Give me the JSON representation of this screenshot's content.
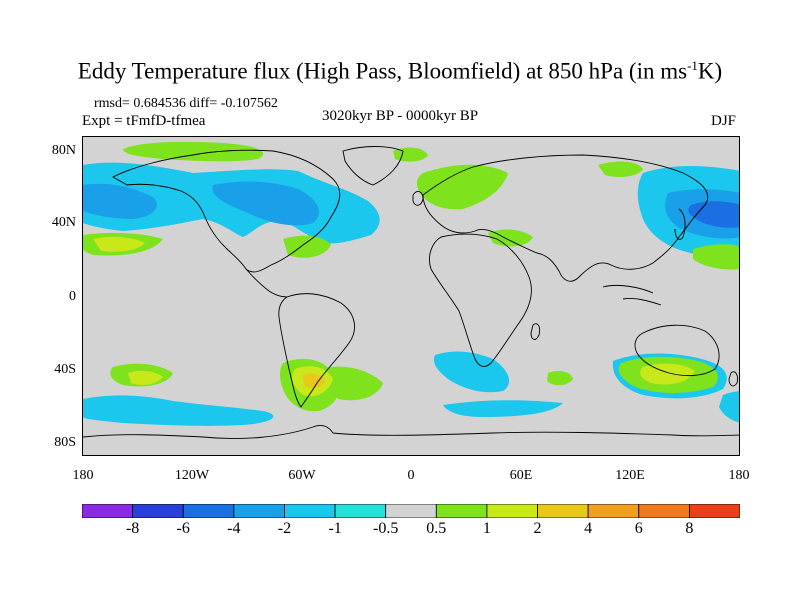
{
  "title": {
    "main": "Eddy Temperature flux (High Pass, Bloomfield) at 850 hPa (in ms",
    "sup": "-1",
    "tail": "K)"
  },
  "stats": "rmsd= 0.684536 diff= -0.107562",
  "experiment": "Expt = tFmfD-tfmea",
  "period": "3020kyr BP - 0000kyr BP",
  "season": "DJF",
  "lat_ticks": [
    "80N",
    "40N",
    "0",
    "40S",
    "80S"
  ],
  "lon_ticks": [
    "180",
    "120W",
    "60W",
    "0",
    "60E",
    "120E",
    "180"
  ],
  "legend": {
    "labels": [
      "-8",
      "-6",
      "-4",
      "-2",
      "-1",
      "-0.5",
      "0.5",
      "1",
      "2",
      "4",
      "6",
      "8"
    ],
    "colors": [
      "#8a2be2",
      "#2a3fd6",
      "#1c6fe0",
      "#1aa0e8",
      "#1bc7ec",
      "#27e0d8",
      "#d3d3d3",
      "#7ee21c",
      "#c8e81a",
      "#e8c81a",
      "#f0a020",
      "#f07a1e",
      "#e8401a"
    ]
  },
  "colors": {
    "land_background": "#d3d3d3",
    "coast": "#000000"
  }
}
